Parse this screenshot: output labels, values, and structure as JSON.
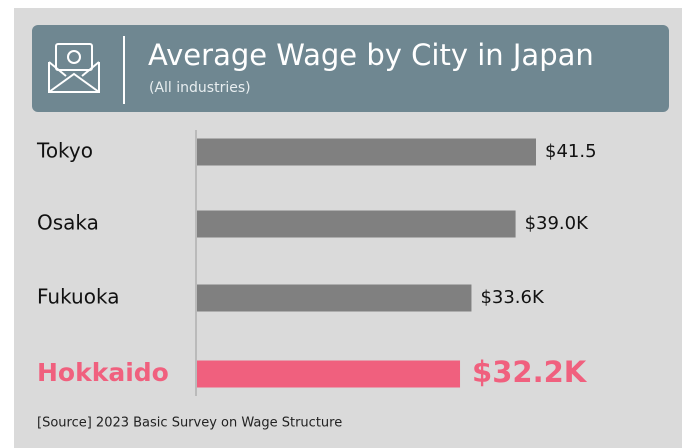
{
  "chart_data": {
    "type": "bar",
    "orientation": "horizontal",
    "title": "Average Wage by City in Japan",
    "subtitle": "(All industries)",
    "categories": [
      "Tokyo",
      "Osaka",
      "Fukuoka",
      "Hokkaido"
    ],
    "values": [
      41.5,
      39.0,
      33.6,
      32.2
    ],
    "value_labels": [
      "$41.5",
      "$39.0K",
      "$33.6K",
      "$32.2K"
    ],
    "colors": [
      "#808080",
      "#808080",
      "#808080",
      "#f0607e"
    ],
    "emphasis": [
      false,
      false,
      false,
      true
    ],
    "source": "[Source] 2023 Basic Survey on Wage Structure"
  }
}
